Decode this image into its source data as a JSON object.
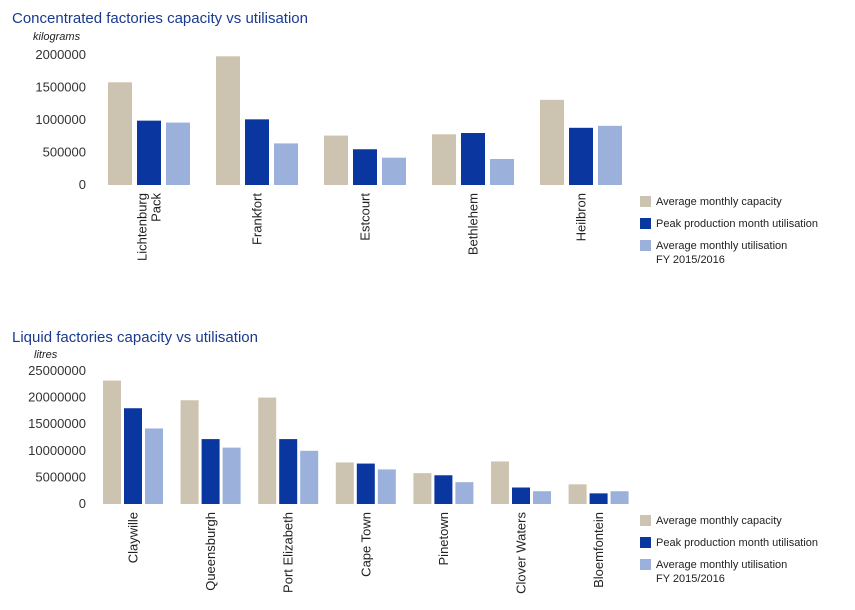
{
  "colors": {
    "capacity": "#cdc3b1",
    "peak": "#0a36a0",
    "average": "#9bb0da"
  },
  "chart_data": [
    {
      "type": "bar",
      "title": "Concentrated factories capacity vs utilisation",
      "ylabel": "kilograms",
      "ylim": [
        0,
        2000000
      ],
      "yticks": [
        0,
        500000,
        1000000,
        1500000,
        2000000
      ],
      "ytick_labels": [
        "0",
        "500000",
        "1000000",
        "1500000",
        "2000000"
      ],
      "categories": [
        [
          "Lichtenburg",
          "Pack"
        ],
        [
          "Frankfort"
        ],
        [
          "Estcourt"
        ],
        [
          "Bethlehem"
        ],
        [
          "Heilbron"
        ]
      ],
      "series": [
        {
          "name": "Average monthly capacity",
          "key": "capacity",
          "values": [
            1580000,
            1980000,
            760000,
            780000,
            1310000
          ]
        },
        {
          "name": "Peak production month utilisation",
          "key": "peak",
          "values": [
            990000,
            1010000,
            550000,
            800000,
            880000
          ]
        },
        {
          "name": "Average monthly utilisation FY 2015/2016",
          "key": "average",
          "values": [
            960000,
            640000,
            420000,
            400000,
            910000
          ]
        }
      ],
      "legend": [
        {
          "key": "capacity",
          "lines": [
            "Average monthly capacity"
          ]
        },
        {
          "key": "peak",
          "lines": [
            "Peak production month utilisation"
          ]
        },
        {
          "key": "average",
          "lines": [
            "Average monthly utilisation",
            "FY 2015/2016"
          ]
        }
      ]
    },
    {
      "type": "bar",
      "title": "Liquid factories capacity vs utilisation",
      "ylabel": "litres",
      "ylim": [
        0,
        25000000
      ],
      "yticks": [
        0,
        5000000,
        10000000,
        15000000,
        20000000,
        25000000
      ],
      "ytick_labels": [
        "0",
        "5000000",
        "10000000",
        "15000000",
        "20000000",
        "25000000"
      ],
      "categories": [
        [
          "Claywille"
        ],
        [
          "Queensburgh"
        ],
        [
          "Port Elizabeth"
        ],
        [
          "Cape Town"
        ],
        [
          "Pinetown"
        ],
        [
          "Clover Waters"
        ],
        [
          "Bloemfontein"
        ]
      ],
      "series": [
        {
          "name": "Average monthly capacity",
          "key": "capacity",
          "values": [
            23200000,
            19500000,
            20000000,
            7800000,
            5800000,
            8000000,
            3700000
          ]
        },
        {
          "name": "Peak production month utilisation",
          "key": "peak",
          "values": [
            18000000,
            12200000,
            12200000,
            7600000,
            5400000,
            3100000,
            2000000
          ]
        },
        {
          "name": "Average monthly utilisation FY 2015/2016",
          "key": "average",
          "values": [
            14200000,
            10600000,
            10000000,
            6500000,
            4100000,
            2400000,
            2400000
          ]
        }
      ],
      "legend": [
        {
          "key": "capacity",
          "lines": [
            "Average monthly capacity"
          ]
        },
        {
          "key": "peak",
          "lines": [
            "Peak production month utilisation"
          ]
        },
        {
          "key": "average",
          "lines": [
            "Average monthly utilisation",
            "FY 2015/2016"
          ]
        }
      ]
    }
  ]
}
